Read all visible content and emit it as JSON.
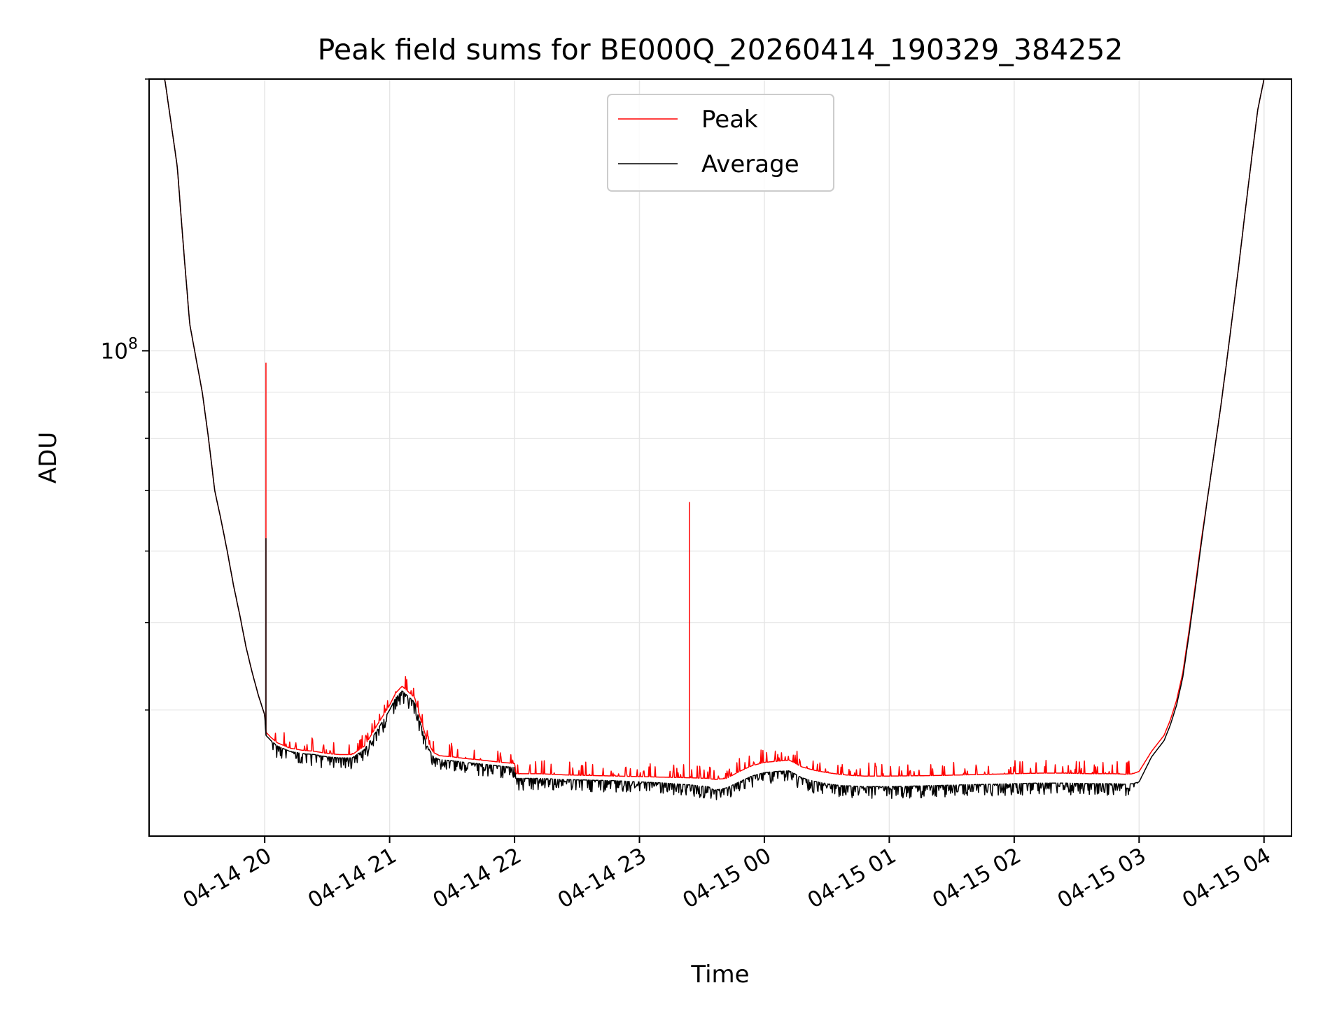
{
  "chart_data": {
    "type": "line",
    "title": "Peak field sums for BE000Q_20260414_190329_384252",
    "xlabel": "Time",
    "ylabel": "ADU",
    "yscale": "log",
    "grid": true,
    "legend_position": "top-center",
    "x_unit": "hours since 04-14 19:00",
    "xlim": [
      0.0745,
      9.22
    ],
    "ylim": [
      29000000.0,
      200000000.0
    ],
    "x_ticks": [
      {
        "x": 1,
        "label": "04-14 20"
      },
      {
        "x": 2,
        "label": "04-14 21"
      },
      {
        "x": 3,
        "label": "04-14 22"
      },
      {
        "x": 4,
        "label": "04-14 23"
      },
      {
        "x": 5,
        "label": "04-15 00"
      },
      {
        "x": 6,
        "label": "04-15 01"
      },
      {
        "x": 7,
        "label": "04-15 02"
      },
      {
        "x": 8,
        "label": "04-15 03"
      },
      {
        "x": 9,
        "label": "04-15 04"
      }
    ],
    "y_ticks": [
      {
        "y": 100000000,
        "mantissa": "10",
        "exponent": "8"
      }
    ],
    "y_minor_ticks": [
      40000000,
      50000000,
      60000000,
      70000000,
      80000000,
      90000000,
      200000000
    ],
    "series": [
      {
        "name": "Peak",
        "color": "#ff0000",
        "x": [
          0.0745,
          0.2,
          0.3,
          0.35,
          0.4,
          0.5,
          0.55,
          0.6,
          0.65,
          0.7,
          0.75,
          0.8,
          0.85,
          0.9,
          0.95,
          1.0,
          1.01,
          1.05,
          1.1,
          1.2,
          1.3,
          1.4,
          1.5,
          1.6,
          1.7,
          1.8,
          1.9,
          2.0,
          2.05,
          2.1,
          2.2,
          2.25,
          2.3,
          2.35,
          2.4,
          2.45,
          2.5,
          2.6,
          2.7,
          2.8,
          2.9,
          3.0,
          3.01,
          3.2,
          3.4,
          3.6,
          3.8,
          4.0,
          4.2,
          4.4,
          4.55,
          4.6,
          4.7,
          4.8,
          4.9,
          5.0,
          5.1,
          5.2,
          5.25,
          5.3,
          5.4,
          5.5,
          5.6,
          5.7,
          5.8,
          5.9,
          6.0,
          6.2,
          6.4,
          6.6,
          6.8,
          7.0,
          7.2,
          7.4,
          7.6,
          7.8,
          7.9,
          7.95,
          8.0,
          8.1,
          8.2,
          8.25,
          8.3,
          8.35,
          8.4,
          8.45,
          8.5,
          8.55,
          8.6,
          8.65,
          8.7,
          8.75,
          8.8,
          8.85,
          8.9,
          8.95,
          9.0
        ],
        "values": [
          200000000,
          200000000,
          160000000,
          130000000,
          107000000,
          90000000,
          80000000,
          70000000,
          65000000,
          60000000,
          55000000,
          51000000,
          47000000,
          44000000,
          41500000,
          39500000,
          37800000,
          37300000,
          36800000,
          36300000,
          36100000,
          36000000,
          35800000,
          35700000,
          35700000,
          36500000,
          38500000,
          40500000,
          41800000,
          42500000,
          41300000,
          39000000,
          37000000,
          35900000,
          35600000,
          35550000,
          35500000,
          35350000,
          35250000,
          35120000,
          35000000,
          34900000,
          34000000,
          34000000,
          33900000,
          33850000,
          33800000,
          33750000,
          33700000,
          33650000,
          33600000,
          33500000,
          33600000,
          34200000,
          34700000,
          35000000,
          35100000,
          35200000,
          34900000,
          34600000,
          34300000,
          34100000,
          33950000,
          33850000,
          33800000,
          33800000,
          33800000,
          33820000,
          33850000,
          33900000,
          33950000,
          34000000,
          34050000,
          34050000,
          34000000,
          34000000,
          33950000,
          34000000,
          34200000,
          36000000,
          37500000,
          39000000,
          41000000,
          44000000,
          49000000,
          55000000,
          62000000,
          69000000,
          77000000,
          86000000,
          97000000,
          110000000,
          125000000,
          143000000,
          163000000,
          185000000,
          200000000
        ],
        "spikes": [
          {
            "x": 1.01,
            "value": 97000000
          },
          {
            "x": 4.4,
            "value": 68000000
          }
        ]
      },
      {
        "name": "Average",
        "color": "#000000",
        "x": [
          0.0745,
          0.2,
          0.3,
          0.35,
          0.4,
          0.5,
          0.55,
          0.6,
          0.65,
          0.7,
          0.75,
          0.8,
          0.85,
          0.9,
          0.95,
          1.0,
          1.01,
          1.05,
          1.1,
          1.2,
          1.3,
          1.4,
          1.5,
          1.6,
          1.7,
          1.8,
          1.9,
          2.0,
          2.05,
          2.1,
          2.2,
          2.25,
          2.3,
          2.35,
          2.4,
          2.45,
          2.5,
          2.6,
          2.7,
          2.8,
          2.9,
          3.0,
          3.01,
          3.2,
          3.4,
          3.6,
          3.8,
          4.0,
          4.2,
          4.4,
          4.55,
          4.6,
          4.7,
          4.8,
          4.9,
          5.0,
          5.1,
          5.2,
          5.25,
          5.3,
          5.4,
          5.5,
          5.6,
          5.7,
          5.8,
          5.9,
          6.0,
          6.2,
          6.4,
          6.6,
          6.8,
          7.0,
          7.2,
          7.4,
          7.6,
          7.8,
          7.9,
          7.95,
          8.0,
          8.1,
          8.2,
          8.25,
          8.3,
          8.35,
          8.4,
          8.45,
          8.5,
          8.55,
          8.6,
          8.65,
          8.7,
          8.75,
          8.8,
          8.85,
          8.9,
          8.95,
          9.0
        ],
        "values": [
          200000000,
          200000000,
          160000000,
          130000000,
          107000000,
          90000000,
          80000000,
          70000000,
          65000000,
          60000000,
          55000000,
          51000000,
          47000000,
          44000000,
          41500000,
          39500000,
          37500000,
          37000000,
          36500000,
          36000000,
          35800000,
          35700000,
          35500000,
          35400000,
          35400000,
          36200000,
          38000000,
          40000000,
          41300000,
          42000000,
          40800000,
          38500000,
          36500000,
          35500000,
          35250000,
          35200000,
          35150000,
          35000000,
          34900000,
          34780000,
          34650000,
          34550000,
          33600000,
          33600000,
          33500000,
          33450000,
          33400000,
          33300000,
          33200000,
          33050000,
          32900000,
          32600000,
          32800000,
          33300000,
          33800000,
          34100000,
          34200000,
          34250000,
          33950000,
          33650000,
          33350000,
          33150000,
          33000000,
          32950000,
          32900000,
          32900000,
          32900000,
          32950000,
          33000000,
          33050000,
          33100000,
          33150000,
          33200000,
          33200000,
          33150000,
          33150000,
          33100000,
          33150000,
          33300000,
          35500000,
          37000000,
          38500000,
          40500000,
          43500000,
          48500000,
          54500000,
          61500000,
          69000000,
          77000000,
          86000000,
          97000000,
          110000000,
          125000000,
          143000000,
          163000000,
          185000000,
          200000000
        ],
        "spikes": [
          {
            "x": 1.01,
            "value": 62000000
          }
        ]
      }
    ]
  }
}
